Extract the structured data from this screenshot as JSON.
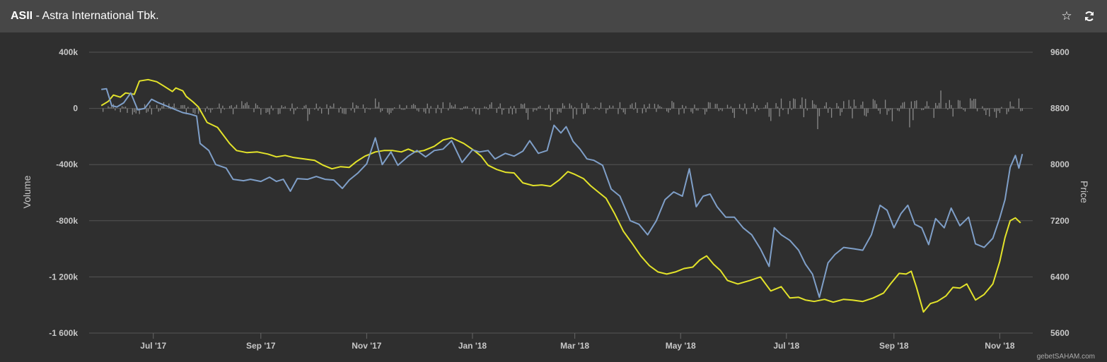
{
  "header": {
    "ticker": "ASII",
    "separator": " - ",
    "company": "Astra International Tbk.",
    "icons": [
      "star-icon",
      "refresh-icon"
    ]
  },
  "credit": "gebetSAHAM.com",
  "chart_data": {
    "type": "line",
    "title": "ASII - Astra International Tbk.",
    "y_left": {
      "label": "Volume",
      "range": [
        -1600000,
        400000
      ],
      "ticks": [
        "400k",
        "0",
        "-400k",
        "-800k",
        "-1 200k",
        "-1 600k"
      ],
      "tick_values": [
        400000,
        0,
        -400000,
        -800000,
        -1200000,
        -1600000
      ]
    },
    "y_right": {
      "label": "Price",
      "range": [
        5600,
        9600
      ],
      "ticks": [
        "9600",
        "8800",
        "8000",
        "7200",
        "6400",
        "5600"
      ],
      "tick_values": [
        9600,
        8800,
        8000,
        7200,
        6400,
        5600
      ]
    },
    "x_ticks": [
      "Jul '17",
      "Sep '17",
      "Nov '17",
      "Jan '18",
      "Mar '18",
      "May '18",
      "Jul '18",
      "Sep '18",
      "Nov '18"
    ],
    "x_tick_dates": [
      "2017-07-01",
      "2017-09-01",
      "2017-11-01",
      "2018-01-01",
      "2018-03-01",
      "2018-05-01",
      "2018-07-01",
      "2018-09-01",
      "2018-11-01"
    ],
    "x_range": [
      "2017-05-25",
      "2018-11-20"
    ],
    "grid": true,
    "series": [
      {
        "color": "#e3e32a",
        "axis": "right",
        "points": [
          [
            "2017-06-01",
            8840
          ],
          [
            "2017-06-05",
            8900
          ],
          [
            "2017-06-08",
            8990
          ],
          [
            "2017-06-12",
            8960
          ],
          [
            "2017-06-15",
            9020
          ],
          [
            "2017-06-20",
            9000
          ],
          [
            "2017-06-23",
            9190
          ],
          [
            "2017-06-28",
            9210
          ],
          [
            "2017-07-03",
            9180
          ],
          [
            "2017-07-07",
            9120
          ],
          [
            "2017-07-12",
            9040
          ],
          [
            "2017-07-14",
            9090
          ],
          [
            "2017-07-18",
            9050
          ],
          [
            "2017-07-20",
            8970
          ],
          [
            "2017-07-24",
            8890
          ],
          [
            "2017-07-27",
            8820
          ],
          [
            "2017-08-01",
            8600
          ],
          [
            "2017-08-07",
            8530
          ],
          [
            "2017-08-14",
            8300
          ],
          [
            "2017-08-18",
            8200
          ],
          [
            "2017-08-24",
            8170
          ],
          [
            "2017-08-30",
            8180
          ],
          [
            "2017-09-05",
            8150
          ],
          [
            "2017-09-10",
            8110
          ],
          [
            "2017-09-15",
            8130
          ],
          [
            "2017-09-20",
            8100
          ],
          [
            "2017-09-26",
            8080
          ],
          [
            "2017-10-02",
            8060
          ],
          [
            "2017-10-07",
            7990
          ],
          [
            "2017-10-12",
            7940
          ],
          [
            "2017-10-17",
            7970
          ],
          [
            "2017-10-22",
            7960
          ],
          [
            "2017-10-26",
            8040
          ],
          [
            "2017-10-31",
            8120
          ],
          [
            "2017-11-06",
            8180
          ],
          [
            "2017-11-11",
            8200
          ],
          [
            "2017-11-16",
            8200
          ],
          [
            "2017-11-21",
            8180
          ],
          [
            "2017-11-25",
            8220
          ],
          [
            "2017-11-29",
            8180
          ],
          [
            "2017-12-04",
            8200
          ],
          [
            "2017-12-10",
            8260
          ],
          [
            "2017-12-15",
            8350
          ],
          [
            "2017-12-20",
            8380
          ],
          [
            "2017-12-27",
            8300
          ],
          [
            "2018-01-02",
            8200
          ],
          [
            "2018-01-06",
            8120
          ],
          [
            "2018-01-10",
            7990
          ],
          [
            "2018-01-15",
            7930
          ],
          [
            "2018-01-20",
            7890
          ],
          [
            "2018-01-25",
            7880
          ],
          [
            "2018-01-30",
            7740
          ],
          [
            "2018-02-05",
            7700
          ],
          [
            "2018-02-10",
            7710
          ],
          [
            "2018-02-15",
            7690
          ],
          [
            "2018-02-20",
            7780
          ],
          [
            "2018-02-25",
            7900
          ],
          [
            "2018-03-01",
            7860
          ],
          [
            "2018-03-06",
            7800
          ],
          [
            "2018-03-10",
            7700
          ],
          [
            "2018-03-15",
            7600
          ],
          [
            "2018-03-19",
            7520
          ],
          [
            "2018-03-24",
            7300
          ],
          [
            "2018-03-29",
            7050
          ],
          [
            "2018-04-03",
            6880
          ],
          [
            "2018-04-08",
            6700
          ],
          [
            "2018-04-13",
            6560
          ],
          [
            "2018-04-18",
            6470
          ],
          [
            "2018-04-23",
            6440
          ],
          [
            "2018-04-28",
            6470
          ],
          [
            "2018-05-03",
            6520
          ],
          [
            "2018-05-08",
            6540
          ],
          [
            "2018-05-12",
            6640
          ],
          [
            "2018-05-16",
            6700
          ],
          [
            "2018-05-20",
            6580
          ],
          [
            "2018-05-24",
            6490
          ],
          [
            "2018-05-28",
            6350
          ],
          [
            "2018-06-03",
            6300
          ],
          [
            "2018-06-10",
            6350
          ],
          [
            "2018-06-16",
            6400
          ],
          [
            "2018-06-22",
            6200
          ],
          [
            "2018-06-28",
            6260
          ],
          [
            "2018-07-03",
            6100
          ],
          [
            "2018-07-08",
            6110
          ],
          [
            "2018-07-12",
            6070
          ],
          [
            "2018-07-17",
            6050
          ],
          [
            "2018-07-23",
            6080
          ],
          [
            "2018-07-28",
            6040
          ],
          [
            "2018-08-03",
            6080
          ],
          [
            "2018-08-08",
            6070
          ],
          [
            "2018-08-14",
            6050
          ],
          [
            "2018-08-20",
            6100
          ],
          [
            "2018-08-26",
            6170
          ],
          [
            "2018-08-30",
            6300
          ],
          [
            "2018-09-04",
            6450
          ],
          [
            "2018-09-08",
            6440
          ],
          [
            "2018-09-11",
            6480
          ],
          [
            "2018-09-14",
            6250
          ],
          [
            "2018-09-18",
            5900
          ],
          [
            "2018-09-22",
            6020
          ],
          [
            "2018-09-26",
            6050
          ],
          [
            "2018-10-01",
            6130
          ],
          [
            "2018-10-05",
            6250
          ],
          [
            "2018-10-09",
            6240
          ],
          [
            "2018-10-13",
            6300
          ],
          [
            "2018-10-18",
            6070
          ],
          [
            "2018-10-23",
            6150
          ],
          [
            "2018-10-28",
            6300
          ],
          [
            "2018-11-01",
            6620
          ],
          [
            "2018-11-04",
            6960
          ],
          [
            "2018-11-07",
            7200
          ],
          [
            "2018-11-10",
            7240
          ],
          [
            "2018-11-13",
            7170
          ]
        ]
      },
      {
        "color": "#7f9fc8",
        "axis": "right",
        "points": [
          [
            "2017-06-01",
            9070
          ],
          [
            "2017-06-04",
            9080
          ],
          [
            "2017-06-07",
            8840
          ],
          [
            "2017-06-10",
            8820
          ],
          [
            "2017-06-14",
            8880
          ],
          [
            "2017-06-18",
            9020
          ],
          [
            "2017-06-22",
            8780
          ],
          [
            "2017-06-26",
            8800
          ],
          [
            "2017-06-30",
            8930
          ],
          [
            "2017-07-04",
            8880
          ],
          [
            "2017-07-09",
            8830
          ],
          [
            "2017-07-14",
            8780
          ],
          [
            "2017-07-18",
            8740
          ],
          [
            "2017-07-22",
            8720
          ],
          [
            "2017-07-26",
            8690
          ],
          [
            "2017-07-28",
            8300
          ],
          [
            "2017-08-02",
            8200
          ],
          [
            "2017-08-06",
            8000
          ],
          [
            "2017-08-12",
            7950
          ],
          [
            "2017-08-16",
            7790
          ],
          [
            "2017-08-22",
            7770
          ],
          [
            "2017-08-26",
            7790
          ],
          [
            "2017-09-01",
            7760
          ],
          [
            "2017-09-06",
            7820
          ],
          [
            "2017-09-10",
            7760
          ],
          [
            "2017-09-14",
            7790
          ],
          [
            "2017-09-18",
            7620
          ],
          [
            "2017-09-22",
            7800
          ],
          [
            "2017-09-28",
            7790
          ],
          [
            "2017-10-03",
            7830
          ],
          [
            "2017-10-08",
            7790
          ],
          [
            "2017-10-13",
            7780
          ],
          [
            "2017-10-18",
            7660
          ],
          [
            "2017-10-22",
            7780
          ],
          [
            "2017-10-27",
            7880
          ],
          [
            "2017-11-01",
            8010
          ],
          [
            "2017-11-06",
            8380
          ],
          [
            "2017-11-10",
            8000
          ],
          [
            "2017-11-15",
            8180
          ],
          [
            "2017-11-19",
            7990
          ],
          [
            "2017-11-25",
            8120
          ],
          [
            "2017-11-30",
            8200
          ],
          [
            "2017-12-05",
            8110
          ],
          [
            "2017-12-10",
            8200
          ],
          [
            "2017-12-15",
            8220
          ],
          [
            "2017-12-20",
            8340
          ],
          [
            "2017-12-26",
            8030
          ],
          [
            "2018-01-01",
            8210
          ],
          [
            "2018-01-05",
            8180
          ],
          [
            "2018-01-10",
            8200
          ],
          [
            "2018-01-14",
            8080
          ],
          [
            "2018-01-20",
            8160
          ],
          [
            "2018-01-25",
            8120
          ],
          [
            "2018-01-30",
            8190
          ],
          [
            "2018-02-03",
            8340
          ],
          [
            "2018-02-08",
            8160
          ],
          [
            "2018-02-13",
            8200
          ],
          [
            "2018-02-17",
            8560
          ],
          [
            "2018-02-21",
            8450
          ],
          [
            "2018-02-24",
            8540
          ],
          [
            "2018-02-28",
            8330
          ],
          [
            "2018-03-04",
            8220
          ],
          [
            "2018-03-08",
            8080
          ],
          [
            "2018-03-12",
            8060
          ],
          [
            "2018-03-17",
            7990
          ],
          [
            "2018-03-22",
            7650
          ],
          [
            "2018-03-27",
            7550
          ],
          [
            "2018-04-02",
            7200
          ],
          [
            "2018-04-07",
            7150
          ],
          [
            "2018-04-12",
            7000
          ],
          [
            "2018-04-17",
            7200
          ],
          [
            "2018-04-22",
            7500
          ],
          [
            "2018-04-27",
            7610
          ],
          [
            "2018-05-02",
            7550
          ],
          [
            "2018-05-06",
            7940
          ],
          [
            "2018-05-10",
            7400
          ],
          [
            "2018-05-14",
            7550
          ],
          [
            "2018-05-18",
            7580
          ],
          [
            "2018-05-22",
            7400
          ],
          [
            "2018-05-27",
            7250
          ],
          [
            "2018-06-01",
            7250
          ],
          [
            "2018-06-06",
            7100
          ],
          [
            "2018-06-11",
            7000
          ],
          [
            "2018-06-16",
            6800
          ],
          [
            "2018-06-21",
            6550
          ],
          [
            "2018-06-24",
            7100
          ],
          [
            "2018-06-28",
            7000
          ],
          [
            "2018-07-03",
            6920
          ],
          [
            "2018-07-08",
            6780
          ],
          [
            "2018-07-12",
            6580
          ],
          [
            "2018-07-16",
            6440
          ],
          [
            "2018-07-20",
            6110
          ],
          [
            "2018-07-25",
            6600
          ],
          [
            "2018-07-29",
            6720
          ],
          [
            "2018-08-03",
            6820
          ],
          [
            "2018-08-09",
            6800
          ],
          [
            "2018-08-14",
            6780
          ],
          [
            "2018-08-19",
            7000
          ],
          [
            "2018-08-24",
            7420
          ],
          [
            "2018-08-28",
            7350
          ],
          [
            "2018-09-01",
            7100
          ],
          [
            "2018-09-05",
            7300
          ],
          [
            "2018-09-09",
            7420
          ],
          [
            "2018-09-13",
            7150
          ],
          [
            "2018-09-17",
            7100
          ],
          [
            "2018-09-21",
            6860
          ],
          [
            "2018-09-25",
            7230
          ],
          [
            "2018-09-30",
            7100
          ],
          [
            "2018-10-04",
            7380
          ],
          [
            "2018-10-09",
            7130
          ],
          [
            "2018-10-14",
            7250
          ],
          [
            "2018-10-18",
            6870
          ],
          [
            "2018-10-23",
            6820
          ],
          [
            "2018-10-28",
            6950
          ],
          [
            "2018-11-01",
            7240
          ],
          [
            "2018-11-04",
            7500
          ],
          [
            "2018-11-07",
            7960
          ],
          [
            "2018-11-10",
            8130
          ],
          [
            "2018-11-12",
            7950
          ],
          [
            "2018-11-14",
            8150
          ]
        ]
      }
    ]
  }
}
